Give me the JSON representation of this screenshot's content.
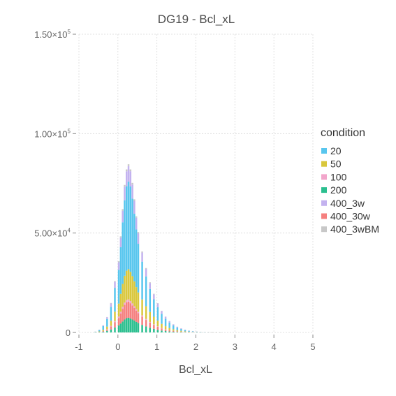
{
  "chart_data": {
    "type": "bar",
    "stacked": true,
    "title": "DG19 - Bcl_xL",
    "xlabel": "Bcl_xL",
    "ylabel": "",
    "xlim": [
      -1,
      5
    ],
    "ylim": [
      0,
      150000
    ],
    "grid": true,
    "legend_placement": "right",
    "legend_title": "condition",
    "x_ticks": [
      {
        "value": -1,
        "label": "-1"
      },
      {
        "value": 0,
        "label": "0"
      },
      {
        "value": 1,
        "label": "1"
      },
      {
        "value": 2,
        "label": "2"
      },
      {
        "value": 3,
        "label": "3"
      },
      {
        "value": 4,
        "label": "4"
      },
      {
        "value": 5,
        "label": "5"
      }
    ],
    "y_ticks": [
      {
        "value": 0,
        "base": "0",
        "exp": ""
      },
      {
        "value": 50000,
        "base": "5.00×10",
        "exp": "4"
      },
      {
        "value": 100000,
        "base": "1.00×10",
        "exp": "5"
      },
      {
        "value": 150000,
        "base": "1.50×10",
        "exp": "5"
      }
    ],
    "bins": [
      -0.7,
      -0.6,
      -0.5,
      -0.4,
      -0.3,
      -0.2,
      -0.1,
      0.0,
      0.05,
      0.1,
      0.15,
      0.2,
      0.25,
      0.3,
      0.35,
      0.4,
      0.45,
      0.5,
      0.6,
      0.7,
      0.8,
      0.9,
      1.0,
      1.1,
      1.2,
      1.3,
      1.4,
      1.5,
      1.6,
      1.7,
      1.8,
      1.9,
      2.0,
      2.1,
      2.2,
      2.3,
      2.4,
      2.5,
      2.6
    ],
    "series": [
      {
        "name": "200",
        "color": "#2bbf8f",
        "values": [
          0,
          50,
          150,
          400,
          800,
          1500,
          2500,
          3500,
          4500,
          5500,
          6500,
          7200,
          7400,
          7000,
          6500,
          6000,
          5300,
          4700,
          3800,
          3000,
          2300,
          1800,
          1300,
          950,
          700,
          500,
          350,
          250,
          180,
          120,
          80,
          55,
          35,
          22,
          14,
          9,
          5,
          3,
          1
        ]
      },
      {
        "name": "400_30w",
        "color": "#f5807f",
        "values": [
          0,
          30,
          100,
          300,
          700,
          1500,
          2700,
          3800,
          5000,
          6400,
          7400,
          7900,
          8100,
          7700,
          7100,
          6300,
          5700,
          5000,
          4200,
          3300,
          2600,
          2000,
          1500,
          1100,
          800,
          550,
          400,
          280,
          200,
          130,
          90,
          60,
          40,
          25,
          16,
          10,
          6,
          3,
          1
        ]
      },
      {
        "name": "100",
        "color": "#f2a6cb",
        "values": [
          0,
          5,
          20,
          60,
          150,
          300,
          550,
          700,
          900,
          1000,
          1100,
          1150,
          1150,
          1100,
          1000,
          900,
          800,
          700,
          600,
          500,
          400,
          300,
          250,
          180,
          130,
          90,
          65,
          45,
          32,
          22,
          15,
          10,
          7,
          4,
          3,
          2,
          1,
          1,
          0
        ]
      },
      {
        "name": "50",
        "color": "#d9c73c",
        "values": [
          0,
          80,
          250,
          600,
          1300,
          2600,
          4700,
          6500,
          9000,
          11500,
          13500,
          14800,
          15200,
          14700,
          13700,
          12500,
          11000,
          9700,
          8000,
          6400,
          5000,
          3800,
          2900,
          2100,
          1500,
          1100,
          800,
          560,
          400,
          280,
          190,
          130,
          85,
          55,
          35,
          22,
          13,
          7,
          3
        ]
      },
      {
        "name": "20",
        "color": "#58c6ee",
        "values": [
          0,
          200,
          700,
          1800,
          3800,
          7000,
          12000,
          17000,
          23500,
          31000,
          38000,
          42500,
          44000,
          43000,
          39000,
          34000,
          29000,
          24500,
          19000,
          15000,
          11500,
          8800,
          6700,
          5000,
          3700,
          2700,
          1900,
          1350,
          950,
          650,
          440,
          300,
          200,
          130,
          85,
          55,
          35,
          20,
          10
        ]
      },
      {
        "name": "400_3w",
        "color": "#c3b2ef",
        "values": [
          0,
          40,
          150,
          400,
          900,
          1700,
          3000,
          3800,
          4800,
          5800,
          6800,
          7500,
          7800,
          7600,
          7100,
          6500,
          5900,
          5300,
          4600,
          3800,
          3100,
          2500,
          1900,
          1450,
          1050,
          780,
          560,
          400,
          280,
          190,
          130,
          90,
          60,
          40,
          25,
          15,
          9,
          5,
          2
        ]
      },
      {
        "name": "400_3wBM",
        "color": "#c8c8c8",
        "values": [
          0,
          5,
          15,
          50,
          110,
          220,
          380,
          500,
          650,
          800,
          900,
          950,
          950,
          900,
          830,
          760,
          680,
          600,
          500,
          400,
          310,
          240,
          180,
          130,
          95,
          68,
          48,
          34,
          24,
          17,
          12,
          8,
          5,
          3,
          2,
          1,
          1,
          0,
          0
        ]
      }
    ]
  },
  "legend_order": [
    "20",
    "50",
    "100",
    "200",
    "400_3w",
    "400_30w",
    "400_3wBM"
  ]
}
